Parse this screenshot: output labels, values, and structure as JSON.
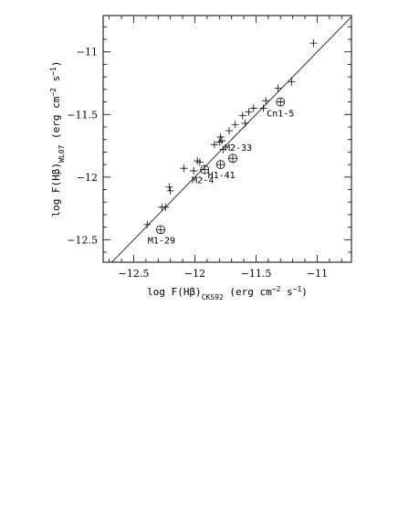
{
  "chart_data": {
    "type": "scatter",
    "x_label": [
      {
        "text": "log F(Hβ)"
      },
      {
        "text": "CKS92",
        "style": "sub"
      },
      {
        "text": " (erg cm"
      },
      {
        "text": "−2",
        "style": "sup"
      },
      {
        "text": " s"
      },
      {
        "text": "−1",
        "style": "sup"
      },
      {
        "text": ")"
      }
    ],
    "y_label": [
      {
        "text": "log F(Hβ)"
      },
      {
        "text": "WL07",
        "style": "sub"
      },
      {
        "text": " (erg cm"
      },
      {
        "text": "−2",
        "style": "sup"
      },
      {
        "text": " s"
      },
      {
        "text": "−1",
        "style": "sup"
      },
      {
        "text": ")"
      }
    ],
    "xlim": [
      -12.75,
      -10.72
    ],
    "ylim": [
      -12.68,
      -10.71
    ],
    "xticks": [
      {
        "value": -12.5,
        "label": "−12.5"
      },
      {
        "value": -12,
        "label": "−12"
      },
      {
        "value": -11.5,
        "label": "−11.5"
      },
      {
        "value": -11,
        "label": "−11"
      }
    ],
    "yticks": [
      {
        "value": -12.5,
        "label": "−12.5"
      },
      {
        "value": -12,
        "label": "−12"
      },
      {
        "value": -11.5,
        "label": "−11.5"
      },
      {
        "value": -11,
        "label": "−11"
      }
    ],
    "xminor": [
      -12.7,
      -12.6,
      -12.4,
      -12.3,
      -12.2,
      -12.1,
      -11.9,
      -11.8,
      -11.7,
      -11.6,
      -11.4,
      -11.3,
      -11.2,
      -11.1,
      -10.9,
      -10.8
    ],
    "yminor": [
      -12.6,
      -12.4,
      -12.3,
      -12.2,
      -12.1,
      -11.9,
      -11.8,
      -11.7,
      -11.6,
      -11.4,
      -11.3,
      -11.2,
      -11.1,
      -10.9,
      -10.8
    ],
    "identity_line": true,
    "points": {
      "x": [
        -12.39,
        -12.27,
        -12.24,
        -12.21,
        -12.2,
        -12.09,
        -12.01,
        -11.98,
        -11.96,
        -11.84,
        -11.8,
        -11.79,
        -11.78,
        -11.77,
        -11.72,
        -11.67,
        -11.61,
        -11.59,
        -11.56,
        -11.52,
        -11.44,
        -11.42,
        -11.32,
        -11.21,
        -11.03
      ],
      "y": [
        -12.38,
        -12.24,
        -12.24,
        -12.08,
        -12.11,
        -11.93,
        -11.95,
        -11.87,
        -11.88,
        -11.74,
        -11.72,
        -11.68,
        -11.71,
        -11.78,
        -11.63,
        -11.58,
        -11.51,
        -11.57,
        -11.48,
        -11.45,
        -11.45,
        -11.39,
        -11.29,
        -11.24,
        -10.93
      ]
    },
    "labeled_points": {
      "x": [
        -11.3,
        -11.69,
        -11.79,
        -11.92,
        -12.28
      ],
      "y": [
        -11.4,
        -11.85,
        -11.9,
        -11.94,
        -12.42
      ],
      "labels": [
        "Cn1-5",
        "M2-33",
        "H1-41",
        "M2-4",
        "M1-29"
      ]
    }
  }
}
